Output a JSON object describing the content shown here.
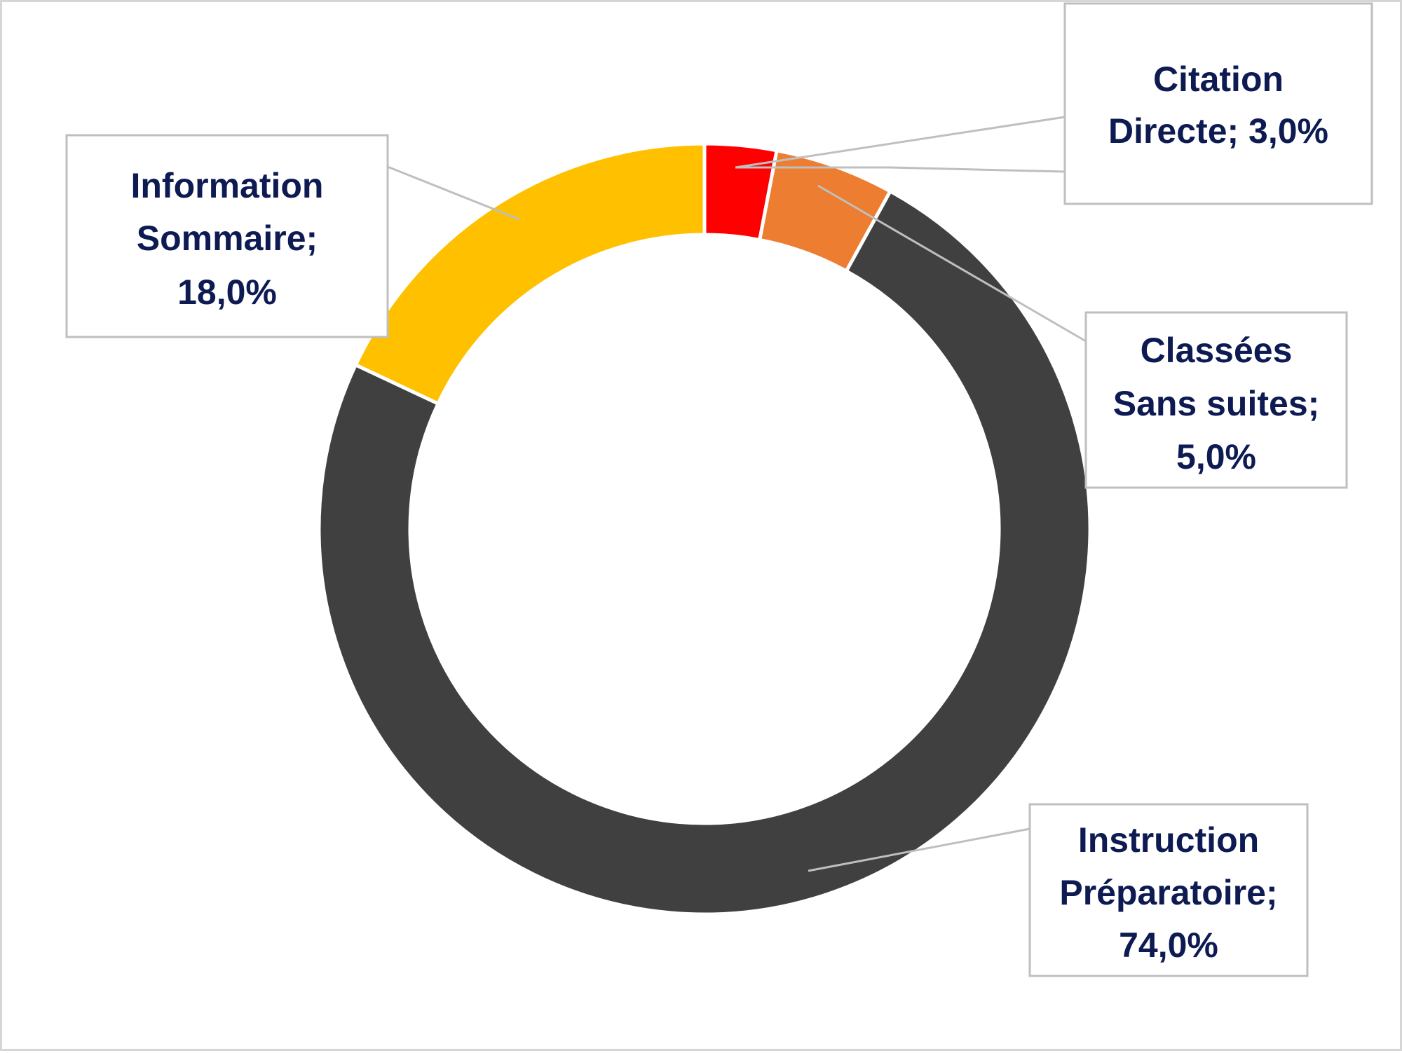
{
  "chart_data": {
    "type": "pie",
    "variant": "donut",
    "title": "",
    "series": [
      {
        "name": "Citation Directe",
        "value": 3.0,
        "label_lines": [
          "Citation",
          "Directe; 3,0%"
        ],
        "color": "#ff0000"
      },
      {
        "name": "Classées Sans suites",
        "value": 5.0,
        "label_lines": [
          "Classées",
          "Sans suites;",
          "5,0%"
        ],
        "color": "#ed7d31"
      },
      {
        "name": "Instruction Préparatoire",
        "value": 74.0,
        "label_lines": [
          "Instruction",
          "Préparatoire;",
          "74,0%"
        ],
        "color": "#404040"
      },
      {
        "name": "Information Sommaire",
        "value": 18.0,
        "label_lines": [
          "Information",
          "Sommaire;",
          "18,0%"
        ],
        "color": "#ffc000"
      }
    ],
    "legend": "none",
    "label_color": "#0d1b52"
  }
}
